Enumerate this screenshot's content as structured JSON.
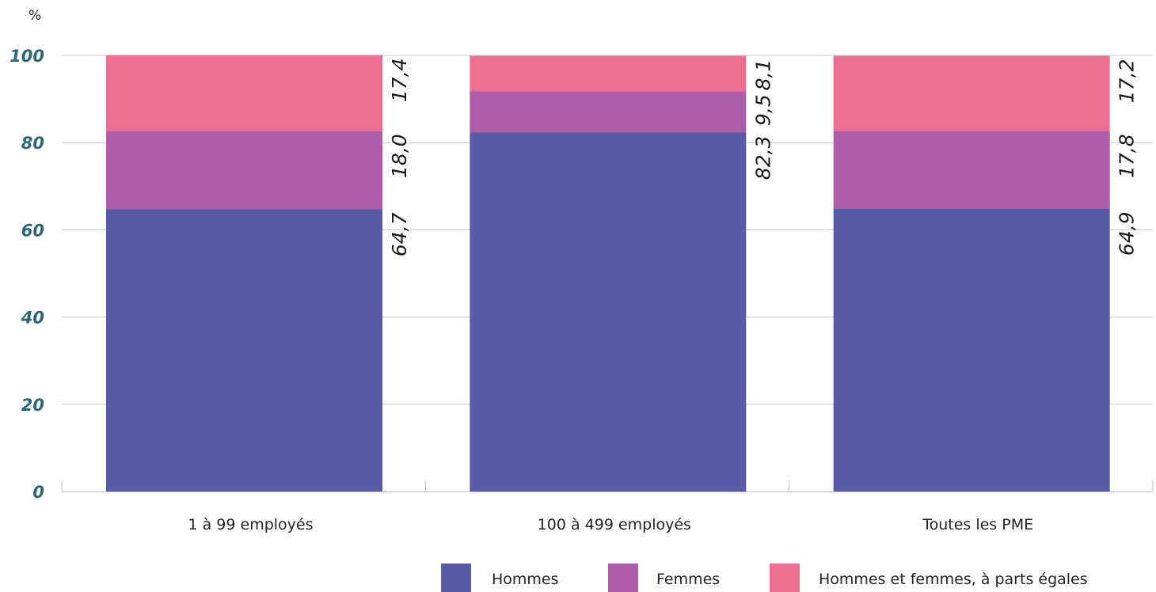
{
  "chart_data": {
    "type": "bar",
    "stacked": true,
    "unit": "%",
    "categories": [
      "1 à 99 employés",
      "100 à 499 employés",
      "Toutes les PME"
    ],
    "series": [
      {
        "name": "Hommes",
        "values": [
          64.7,
          82.3,
          64.9
        ],
        "labels": [
          "64,7",
          "82,3",
          "64,9"
        ],
        "color": "#575ba6"
      },
      {
        "name": "Femmes",
        "values": [
          18.0,
          9.5,
          17.8
        ],
        "labels": [
          "18,0",
          "9,5",
          "17,8"
        ],
        "color": "#ac5fa8"
      },
      {
        "name": "Hommes et femmes, à parts égales",
        "values": [
          17.4,
          8.1,
          17.2
        ],
        "labels": [
          "17,4",
          "8,1",
          "17,2"
        ],
        "color": "#ed6e93"
      }
    ],
    "ylim": [
      0,
      100
    ],
    "yticks": [
      0,
      20,
      40,
      60,
      80,
      100
    ],
    "grid": true,
    "legend_position": "bottom-right",
    "colors": {
      "tick_text": "#2b6777",
      "grid": "#c8c8c8",
      "axis": "#bdbdbd"
    }
  }
}
